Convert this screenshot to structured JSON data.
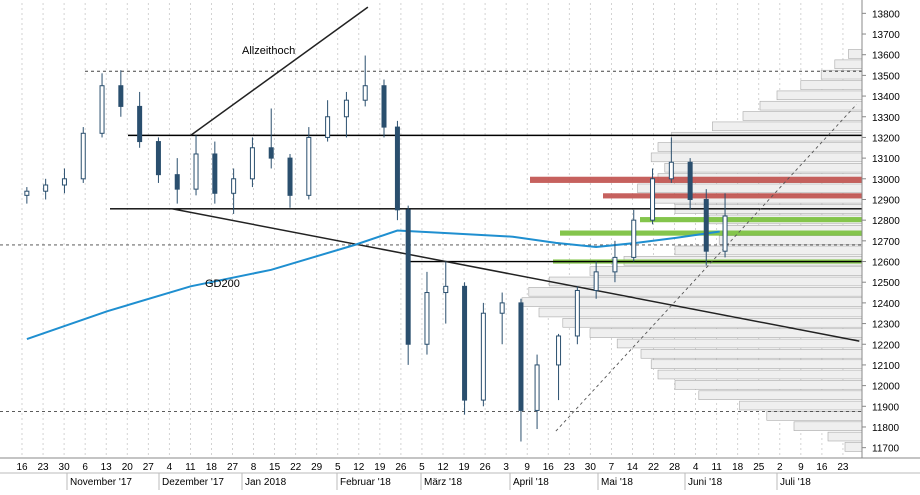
{
  "chart_data": {
    "type": "candlestick",
    "title": "",
    "xlabel": "",
    "ylabel": "",
    "ylim": [
      11650,
      13850
    ],
    "y_ticks": [
      11700,
      11800,
      11900,
      12000,
      12100,
      12200,
      12300,
      12400,
      12500,
      12600,
      12700,
      12800,
      12900,
      13000,
      13100,
      13200,
      13300,
      13400,
      13500,
      13600,
      13700,
      13800
    ],
    "grid": true,
    "day_ticks": [
      "16",
      "23",
      "30",
      "6",
      "13",
      "20",
      "27",
      "4",
      "11",
      "18",
      "27",
      "8",
      "15",
      "22",
      "29",
      "5",
      "12",
      "19",
      "26",
      "5",
      "12",
      "19",
      "26",
      "3",
      "9",
      "16",
      "23",
      "30",
      "7",
      "14",
      "22",
      "28",
      "4",
      "11",
      "18",
      "25",
      "2",
      "9",
      "16",
      "23"
    ],
    "month_labels": [
      "November '17",
      "Dezember '17",
      "Jan 2018",
      "Februar '18",
      "März '18",
      "April '18",
      "Mai '18",
      "Juni '18",
      "Juli '18"
    ],
    "annotations": {
      "ath_label": "Allzeithoch",
      "ma_label": "GD200"
    },
    "horizontal_levels": {
      "solid": [
        13210,
        12855,
        12600
      ],
      "dashed": [
        13520,
        12680,
        11875
      ]
    },
    "zones": {
      "resistance": [
        {
          "from": 12980,
          "to": 13010
        },
        {
          "from": 12905,
          "to": 12930
        }
      ],
      "support": [
        {
          "from": 12790,
          "to": 12815
        },
        {
          "from": 12725,
          "to": 12750
        },
        {
          "from": 12590,
          "to": 12610
        }
      ]
    },
    "trendlines": [
      {
        "from": [
          "2017-11-20",
          13210
        ],
        "to": [
          "2018-01-25",
          13830
        ]
      },
      {
        "from": [
          "2017-11-13",
          12855
        ],
        "to": [
          "2018-07-27",
          12215
        ]
      },
      {
        "from": [
          "2018-04-05",
          11780
        ],
        "to": [
          "2018-07-26",
          13360
        ],
        "dashed": true
      }
    ],
    "gd200": [
      {
        "x": "2017-09-20",
        "y": 12225
      },
      {
        "x": "2017-10-20",
        "y": 12360
      },
      {
        "x": "2017-11-20",
        "y": 12480
      },
      {
        "x": "2017-12-20",
        "y": 12560
      },
      {
        "x": "2018-01-20",
        "y": 12680
      },
      {
        "x": "2018-02-05",
        "y": 12750
      },
      {
        "x": "2018-02-20",
        "y": 12740
      },
      {
        "x": "2018-03-20",
        "y": 12720
      },
      {
        "x": "2018-04-05",
        "y": 12690
      },
      {
        "x": "2018-04-20",
        "y": 12670
      },
      {
        "x": "2018-05-05",
        "y": 12690
      },
      {
        "x": "2018-05-20",
        "y": 12715
      },
      {
        "x": "2018-06-05",
        "y": 12745
      }
    ],
    "candles": [
      {
        "x": "2017-09-20",
        "o": 12920,
        "h": 12960,
        "l": 12880,
        "c": 12940
      },
      {
        "x": "2017-09-27",
        "o": 12940,
        "h": 13000,
        "l": 12900,
        "c": 12970
      },
      {
        "x": "2017-10-04",
        "o": 12970,
        "h": 13050,
        "l": 12930,
        "c": 13000
      },
      {
        "x": "2017-10-11",
        "o": 13000,
        "h": 13250,
        "l": 12980,
        "c": 13220
      },
      {
        "x": "2017-10-18",
        "o": 13220,
        "h": 13510,
        "l": 13200,
        "c": 13450
      },
      {
        "x": "2017-10-25",
        "o": 13450,
        "h": 13525,
        "l": 13300,
        "c": 13350
      },
      {
        "x": "2017-11-01",
        "o": 13350,
        "h": 13420,
        "l": 13150,
        "c": 13180
      },
      {
        "x": "2017-11-08",
        "o": 13180,
        "h": 13200,
        "l": 12980,
        "c": 13020
      },
      {
        "x": "2017-11-15",
        "o": 13020,
        "h": 13100,
        "l": 12880,
        "c": 12950
      },
      {
        "x": "2017-11-22",
        "o": 12950,
        "h": 13210,
        "l": 12920,
        "c": 13120
      },
      {
        "x": "2017-11-29",
        "o": 13120,
        "h": 13180,
        "l": 12880,
        "c": 12930
      },
      {
        "x": "2017-12-06",
        "o": 12930,
        "h": 13050,
        "l": 12830,
        "c": 13000
      },
      {
        "x": "2017-12-13",
        "o": 13000,
        "h": 13200,
        "l": 12960,
        "c": 13150
      },
      {
        "x": "2017-12-20",
        "o": 13150,
        "h": 13340,
        "l": 13050,
        "c": 13100
      },
      {
        "x": "2017-12-27",
        "o": 13100,
        "h": 13120,
        "l": 12860,
        "c": 12920
      },
      {
        "x": "2018-01-03",
        "o": 12920,
        "h": 13250,
        "l": 12900,
        "c": 13200
      },
      {
        "x": "2018-01-10",
        "o": 13200,
        "h": 13380,
        "l": 13180,
        "c": 13300
      },
      {
        "x": "2018-01-17",
        "o": 13300,
        "h": 13420,
        "l": 13200,
        "c": 13380
      },
      {
        "x": "2018-01-24",
        "o": 13380,
        "h": 13596,
        "l": 13350,
        "c": 13450
      },
      {
        "x": "2018-01-31",
        "o": 13450,
        "h": 13480,
        "l": 13200,
        "c": 13250
      },
      {
        "x": "2018-02-05",
        "o": 13250,
        "h": 13280,
        "l": 12800,
        "c": 12850
      },
      {
        "x": "2018-02-09",
        "o": 12850,
        "h": 12870,
        "l": 12100,
        "c": 12200
      },
      {
        "x": "2018-02-16",
        "o": 12200,
        "h": 12550,
        "l": 12150,
        "c": 12450
      },
      {
        "x": "2018-02-23",
        "o": 12450,
        "h": 12600,
        "l": 12300,
        "c": 12480
      },
      {
        "x": "2018-03-02",
        "o": 12480,
        "h": 12500,
        "l": 11860,
        "c": 11930
      },
      {
        "x": "2018-03-09",
        "o": 11930,
        "h": 12400,
        "l": 11900,
        "c": 12350
      },
      {
        "x": "2018-03-16",
        "o": 12350,
        "h": 12450,
        "l": 12200,
        "c": 12400
      },
      {
        "x": "2018-03-23",
        "o": 12400,
        "h": 12420,
        "l": 11730,
        "c": 11880
      },
      {
        "x": "2018-03-29",
        "o": 11880,
        "h": 12150,
        "l": 11790,
        "c": 12100
      },
      {
        "x": "2018-04-06",
        "o": 12100,
        "h": 12250,
        "l": 11930,
        "c": 12240
      },
      {
        "x": "2018-04-13",
        "o": 12240,
        "h": 12480,
        "l": 12200,
        "c": 12460
      },
      {
        "x": "2018-04-20",
        "o": 12460,
        "h": 12600,
        "l": 12420,
        "c": 12550
      },
      {
        "x": "2018-04-27",
        "o": 12550,
        "h": 12700,
        "l": 12500,
        "c": 12620
      },
      {
        "x": "2018-05-04",
        "o": 12620,
        "h": 12850,
        "l": 12600,
        "c": 12800
      },
      {
        "x": "2018-05-11",
        "o": 12800,
        "h": 13050,
        "l": 12780,
        "c": 13000
      },
      {
        "x": "2018-05-18",
        "o": 13000,
        "h": 13200,
        "l": 12980,
        "c": 13080
      },
      {
        "x": "2018-05-25",
        "o": 13080,
        "h": 13100,
        "l": 12850,
        "c": 12900
      },
      {
        "x": "2018-05-31",
        "o": 12900,
        "h": 12950,
        "l": 12580,
        "c": 12650
      },
      {
        "x": "2018-06-07",
        "o": 12650,
        "h": 12930,
        "l": 12620,
        "c": 12820
      }
    ],
    "volume_profile": [
      {
        "price": 11700,
        "volume": 0.05
      },
      {
        "price": 11750,
        "volume": 0.1
      },
      {
        "price": 11800,
        "volume": 0.2
      },
      {
        "price": 11850,
        "volume": 0.28
      },
      {
        "price": 11900,
        "volume": 0.36
      },
      {
        "price": 11950,
        "volume": 0.48
      },
      {
        "price": 12000,
        "volume": 0.55
      },
      {
        "price": 12050,
        "volume": 0.6
      },
      {
        "price": 12100,
        "volume": 0.62
      },
      {
        "price": 12150,
        "volume": 0.65
      },
      {
        "price": 12200,
        "volume": 0.72
      },
      {
        "price": 12250,
        "volume": 0.8
      },
      {
        "price": 12300,
        "volume": 0.88
      },
      {
        "price": 12350,
        "volume": 0.95
      },
      {
        "price": 12400,
        "volume": 1.0
      },
      {
        "price": 12450,
        "volume": 0.98
      },
      {
        "price": 12500,
        "volume": 0.92
      },
      {
        "price": 12550,
        "volume": 0.8
      },
      {
        "price": 12600,
        "volume": 0.7
      },
      {
        "price": 12650,
        "volume": 0.55
      },
      {
        "price": 12700,
        "volume": 0.42
      },
      {
        "price": 12750,
        "volume": 0.4
      },
      {
        "price": 12800,
        "volume": 0.45
      },
      {
        "price": 12850,
        "volume": 0.55
      },
      {
        "price": 12900,
        "volume": 0.62
      },
      {
        "price": 12950,
        "volume": 0.66
      },
      {
        "price": 13000,
        "volume": 0.6
      },
      {
        "price": 13050,
        "volume": 0.58
      },
      {
        "price": 13100,
        "volume": 0.62
      },
      {
        "price": 13150,
        "volume": 0.6
      },
      {
        "price": 13200,
        "volume": 0.56
      },
      {
        "price": 13250,
        "volume": 0.44
      },
      {
        "price": 13300,
        "volume": 0.35
      },
      {
        "price": 13350,
        "volume": 0.3
      },
      {
        "price": 13400,
        "volume": 0.25
      },
      {
        "price": 13450,
        "volume": 0.18
      },
      {
        "price": 13500,
        "volume": 0.12
      },
      {
        "price": 13550,
        "volume": 0.08
      },
      {
        "price": 13600,
        "volume": 0.04
      }
    ],
    "colors": {
      "candle": "#2a4f6e",
      "gd200": "#1f8fd0",
      "resistance_zone": "#c0504d",
      "support_zone": "#7dc242",
      "volume_profile_fill": "#efefef",
      "volume_profile_stroke": "#a8a8a8",
      "level_line": "#000000"
    }
  }
}
